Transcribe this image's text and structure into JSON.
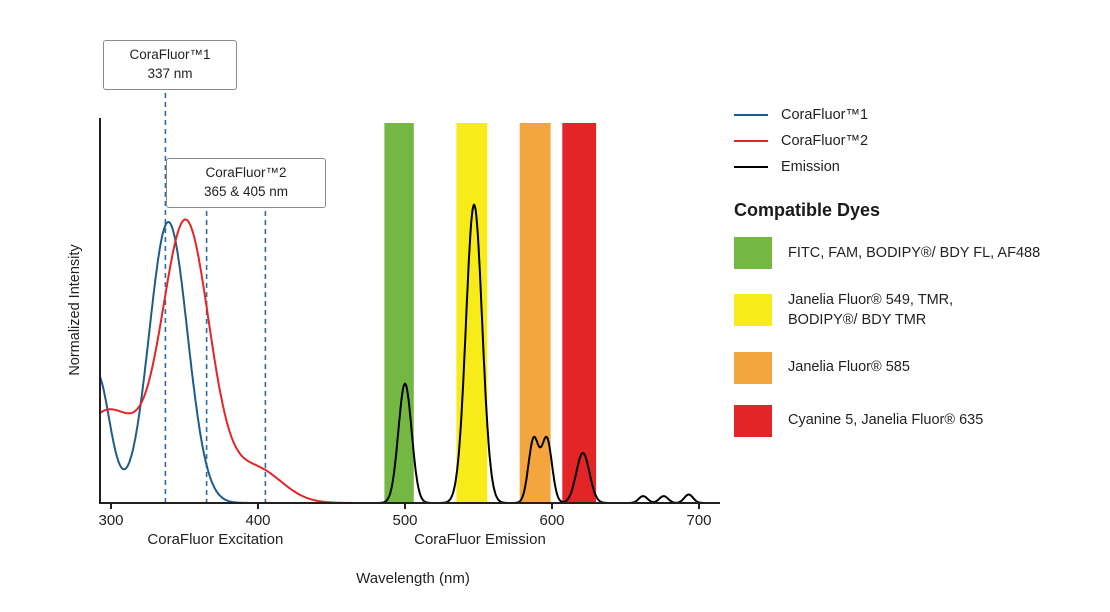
{
  "chart_data": {
    "type": "line",
    "title": "",
    "xlabel": "Wavelength (nm)",
    "ylabel": "Normalized Intensity",
    "xlim": [
      292.5,
      714
    ],
    "ylim": [
      0,
      1
    ],
    "x_ticks": [
      300,
      400,
      500,
      600,
      700
    ],
    "grid": false,
    "legend_position": "upper right (outside)",
    "annotation_line_color": "#2e6da4",
    "annotations": [
      {
        "title": "CoraFluor™1",
        "subtitle": "337 nm",
        "lines_nm": [
          337
        ]
      },
      {
        "title": "CoraFluor™2",
        "subtitle": "365 & 405 nm",
        "lines_nm": [
          365,
          405
        ]
      }
    ],
    "region_labels": [
      {
        "label": "CoraFluor Excitation",
        "center_nm": 371
      },
      {
        "label": "CoraFluor Emission",
        "center_nm": 551
      }
    ],
    "bands": [
      {
        "name": "green-filter-band",
        "color": "#74b843",
        "from_nm": 486,
        "to_nm": 506
      },
      {
        "name": "yellow-filter-band",
        "color": "#f7ec1a",
        "from_nm": 535,
        "to_nm": 556
      },
      {
        "name": "orange-filter-band",
        "color": "#f4a53d",
        "from_nm": 578,
        "to_nm": 599
      },
      {
        "name": "red-filter-band",
        "color": "#e32528",
        "from_nm": 607,
        "to_nm": 630
      }
    ],
    "series": [
      {
        "name": "CoraFluor™1",
        "role": "excitation",
        "color": "#1f5c8b",
        "gaussians": [
          {
            "c": 339,
            "s": 13,
            "a": 0.73
          },
          {
            "c": 290,
            "s": 9,
            "a": 0.34
          }
        ]
      },
      {
        "name": "CoraFluor™2",
        "role": "excitation",
        "color": "#e32528",
        "gaussians": [
          {
            "c": 351,
            "s": 16,
            "a": 0.72
          },
          {
            "c": 298,
            "s": 22,
            "a": 0.24
          },
          {
            "c": 398,
            "s": 18,
            "a": 0.09
          }
        ]
      },
      {
        "name": "Emission",
        "role": "emission",
        "color": "#000000",
        "gaussians": [
          {
            "c": 500,
            "s": 4.5,
            "a": 0.31
          },
          {
            "c": 547,
            "s": 5.5,
            "a": 0.775
          },
          {
            "c": 587.5,
            "s": 3.5,
            "a": 0.165
          },
          {
            "c": 596.5,
            "s": 3.5,
            "a": 0.165
          },
          {
            "c": 621,
            "s": 4.5,
            "a": 0.13
          },
          {
            "c": 662,
            "s": 3,
            "a": 0.018
          },
          {
            "c": 676,
            "s": 3,
            "a": 0.018
          },
          {
            "c": 693,
            "s": 3,
            "a": 0.022
          }
        ]
      }
    ]
  },
  "legend": {
    "items": [
      {
        "label": "CoraFluor™1",
        "color": "#1f5c8b"
      },
      {
        "label": "CoraFluor™2",
        "color": "#e32528"
      },
      {
        "label": "Emission",
        "color": "#000000"
      }
    ]
  },
  "compatible_dyes": {
    "heading": "Compatible Dyes",
    "items": [
      {
        "color": "#74b843",
        "label": "FITC, FAM, BODIPY®/ BDY FL, AF488"
      },
      {
        "color": "#f7ec1a",
        "label": "Janelia Fluor® 549, TMR,\nBODIPY®/ BDY TMR"
      },
      {
        "color": "#f4a53d",
        "label": "Janelia Fluor® 585"
      },
      {
        "color": "#e32528",
        "label": "Cyanine 5, Janelia Fluor® 635"
      }
    ]
  }
}
